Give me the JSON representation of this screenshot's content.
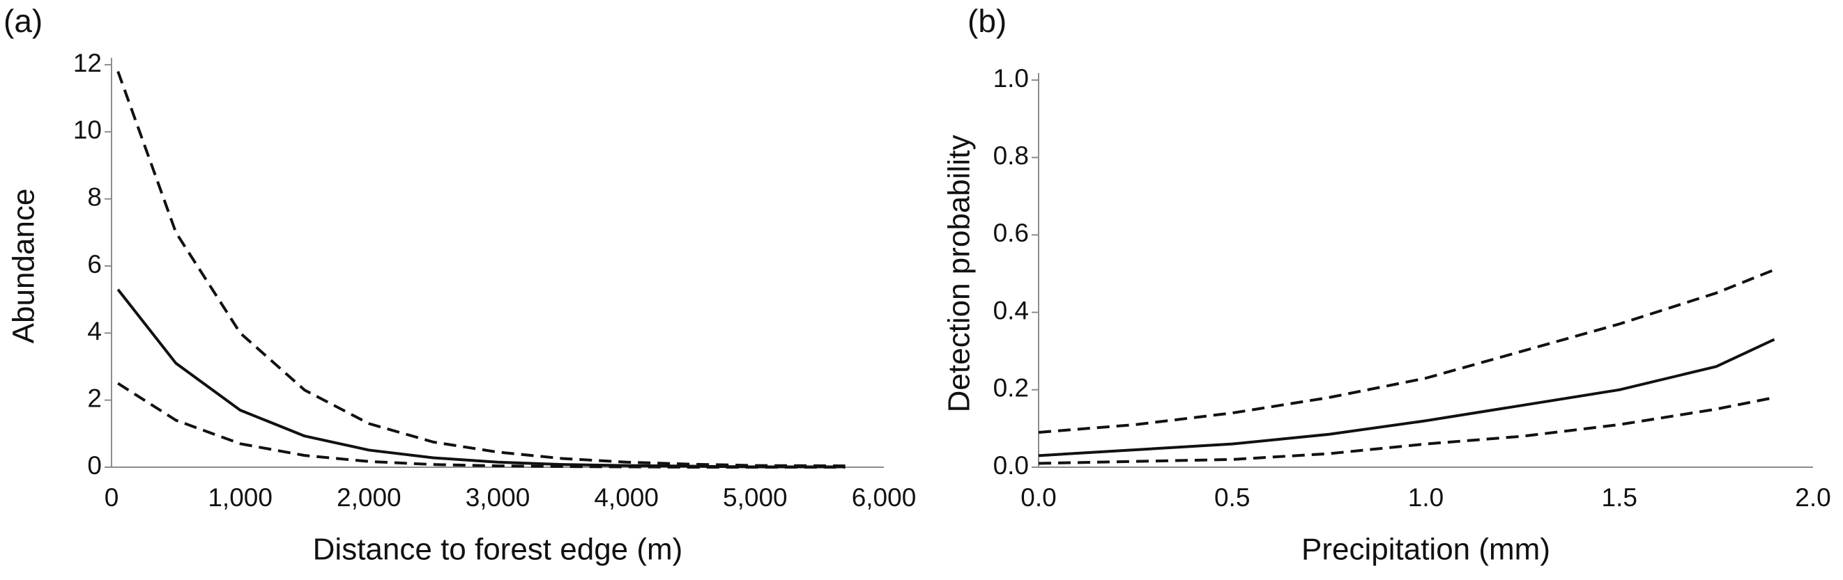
{
  "chart_data": [
    {
      "type": "line",
      "panel_label": "(a)",
      "x_label": "Distance to forest edge (m)",
      "y_label": "Abundance",
      "x": [
        50,
        500,
        1000,
        1500,
        2000,
        2500,
        3000,
        3500,
        4000,
        4500,
        5000,
        5700
      ],
      "series": [
        {
          "color": "#111111",
          "style": "solid",
          "values": [
            5.3,
            3.1,
            1.7,
            0.93,
            0.51,
            0.28,
            0.15,
            0.08,
            0.05,
            0.03,
            0.01,
            0.01
          ]
        },
        {
          "color": "#111111",
          "style": "dashed",
          "values": [
            11.8,
            7.0,
            4.0,
            2.3,
            1.3,
            0.75,
            0.45,
            0.26,
            0.15,
            0.09,
            0.05,
            0.04
          ]
        },
        {
          "color": "#111111",
          "style": "dashed",
          "values": [
            2.5,
            1.4,
            0.7,
            0.35,
            0.17,
            0.08,
            0.04,
            0.02,
            0.01,
            0,
            0,
            0
          ]
        }
      ],
      "xlim": [
        0,
        6000
      ],
      "xticks": [
        0,
        {
          "value": 1000,
          "label": "1,000"
        },
        {
          "value": 2000,
          "label": "2,000"
        },
        {
          "value": 3000,
          "label": "3,000"
        },
        {
          "value": 4000,
          "label": "4,000"
        },
        {
          "value": 5000,
          "label": "5,000"
        },
        {
          "value": 6000,
          "label": "6,000"
        }
      ],
      "ylim": [
        0,
        12
      ],
      "yticks": [
        0,
        2,
        4,
        6,
        8,
        10,
        12
      ],
      "grid": false
    },
    {
      "type": "line",
      "panel_label": "(b)",
      "x_label": "Precipitation (mm)",
      "y_label": "Detection probability",
      "x": [
        0,
        0.25,
        0.5,
        0.75,
        1.0,
        1.25,
        1.5,
        1.75,
        1.9
      ],
      "series": [
        {
          "color": "#111111",
          "style": "solid",
          "values": [
            0.03,
            0.045,
            0.06,
            0.085,
            0.12,
            0.16,
            0.2,
            0.26,
            0.33
          ]
        },
        {
          "color": "#111111",
          "style": "dashed",
          "values": [
            0.09,
            0.11,
            0.14,
            0.18,
            0.23,
            0.3,
            0.37,
            0.45,
            0.51
          ]
        },
        {
          "color": "#111111",
          "style": "dashed",
          "values": [
            0.01,
            0.015,
            0.02,
            0.035,
            0.06,
            0.08,
            0.11,
            0.15,
            0.18
          ]
        }
      ],
      "xlim": [
        0,
        2.0
      ],
      "xticks": [
        {
          "value": 0,
          "label": "0.0"
        },
        {
          "value": 0.5,
          "label": "0.5"
        },
        {
          "value": 1.0,
          "label": "1.0"
        },
        {
          "value": 1.5,
          "label": "1.5"
        },
        {
          "value": 2.0,
          "label": "2.0"
        }
      ],
      "ylim": [
        0,
        1.0
      ],
      "yticks": [
        {
          "value": 0,
          "label": "0.0"
        },
        {
          "value": 0.2,
          "label": "0.2"
        },
        {
          "value": 0.4,
          "label": "0.4"
        },
        {
          "value": 0.6,
          "label": "0.6"
        },
        {
          "value": 0.8,
          "label": "0.8"
        },
        {
          "value": 1.0,
          "label": "1.0"
        }
      ],
      "grid": false
    }
  ]
}
